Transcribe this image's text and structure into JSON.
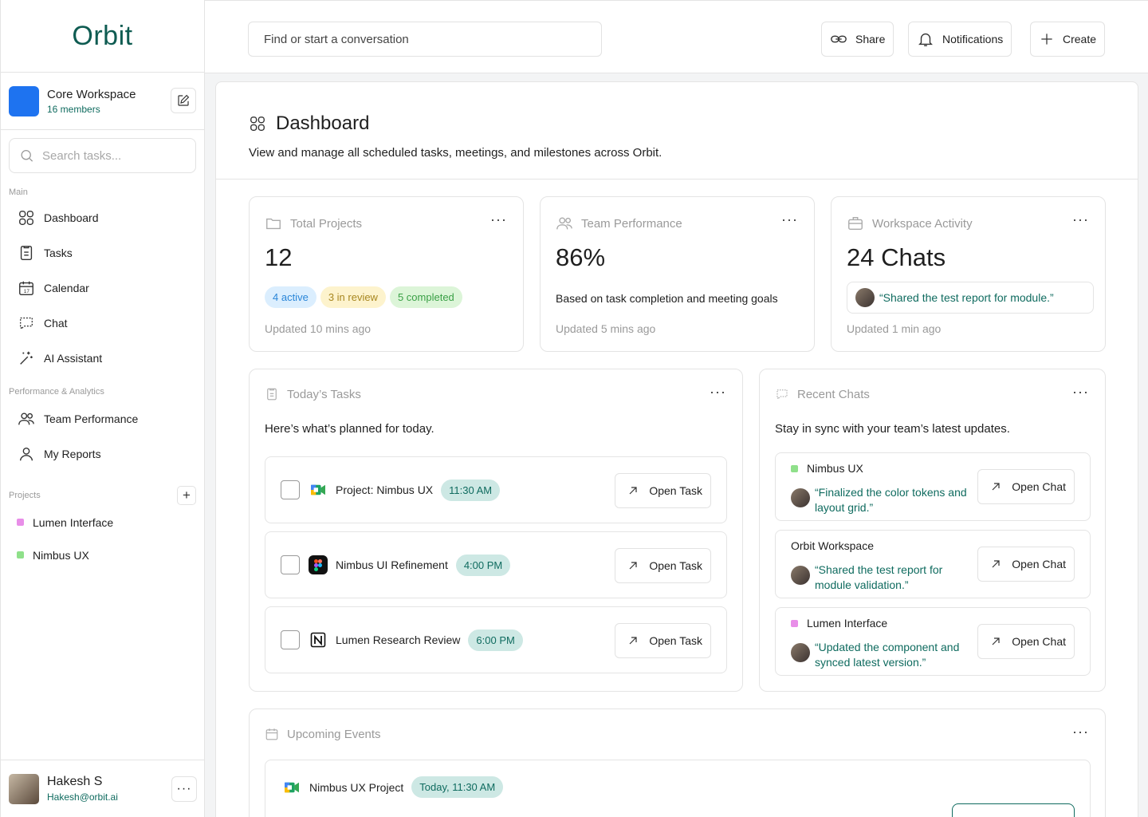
{
  "app": {
    "name": "Orbit"
  },
  "workspace": {
    "name": "Core Workspace",
    "members": "16 members"
  },
  "sidebar": {
    "search_placeholder": "Search tasks...",
    "main_label": "Main",
    "main_items": [
      {
        "label": "Dashboard",
        "icon": "grid-icon"
      },
      {
        "label": "Tasks",
        "icon": "clipboard-icon"
      },
      {
        "label": "Calendar",
        "icon": "calendar-icon"
      },
      {
        "label": "Chat",
        "icon": "chat-icon"
      },
      {
        "label": "AI Assistant",
        "icon": "sparkle-icon"
      }
    ],
    "analytics_label": "Performance & Analytics",
    "analytics_items": [
      {
        "label": "Team Performance",
        "icon": "people-icon"
      },
      {
        "label": "My Reports",
        "icon": "person-icon"
      }
    ],
    "projects_label": "Projects",
    "projects": [
      {
        "label": "Lumen Interface",
        "color": "#e88ee8"
      },
      {
        "label": "Nimbus UX",
        "color": "#8fe08a"
      }
    ]
  },
  "user": {
    "name": "Hakesh S",
    "email": "Hakesh@orbit.ai"
  },
  "topbar": {
    "search_placeholder": "Find or start a conversation",
    "share": "Share",
    "notifications": "Notifications",
    "create": "Create"
  },
  "dashboard": {
    "title": "Dashboard",
    "subtitle": "View and manage all scheduled tasks, meetings, and milestones across Orbit."
  },
  "stats": {
    "projects": {
      "title": "Total Projects",
      "value": "12",
      "active": "4 active",
      "review": "3 in review",
      "completed": "5 completed",
      "updated": "Updated 10 mins ago"
    },
    "performance": {
      "title": "Team Performance",
      "value": "86%",
      "description": "Based on task completion and meeting goals",
      "updated": "Updated 5 mins ago"
    },
    "activity": {
      "title": "Workspace Activity",
      "value": "24 Chats",
      "quote": "“Shared the test report for module.”",
      "updated": "Updated 1 min ago"
    }
  },
  "tasks": {
    "title": "Today’s Tasks",
    "subtitle": "Here’s what’s planned for today.",
    "open_label": "Open Task",
    "items": [
      {
        "name": "Project: Nimbus UX",
        "time": "11:30 AM",
        "app": "google-meet-icon"
      },
      {
        "name": "Nimbus UI Refinement",
        "time": "4:00 PM",
        "app": "figma-icon"
      },
      {
        "name": "Lumen Research Review",
        "time": "6:00 PM",
        "app": "notion-icon"
      }
    ]
  },
  "chats": {
    "title": "Recent Chats",
    "subtitle": "Stay in sync with your team’s latest updates.",
    "open_label": "Open Chat",
    "items": [
      {
        "name": "Nimbus UX",
        "dot": "#8fe08a",
        "line1": "“Finalized the color tokens and",
        "line2": "layout grid.”"
      },
      {
        "name": "Orbit Workspace",
        "dot": "",
        "line1": "“Shared the test report for",
        "line2": "module validation.”"
      },
      {
        "name": "Lumen Interface",
        "dot": "#e88ee8",
        "line1": "“Updated the component and",
        "line2": "synced latest version.”"
      }
    ]
  },
  "events": {
    "title": "Upcoming Events",
    "items": [
      {
        "name": "Nimbus UX Project",
        "time": "Today, 11:30 AM"
      }
    ]
  },
  "colors": {
    "accent": "#0f5c52",
    "accent_text": "#0f6b5f",
    "time_pill": "#cde8e4"
  }
}
